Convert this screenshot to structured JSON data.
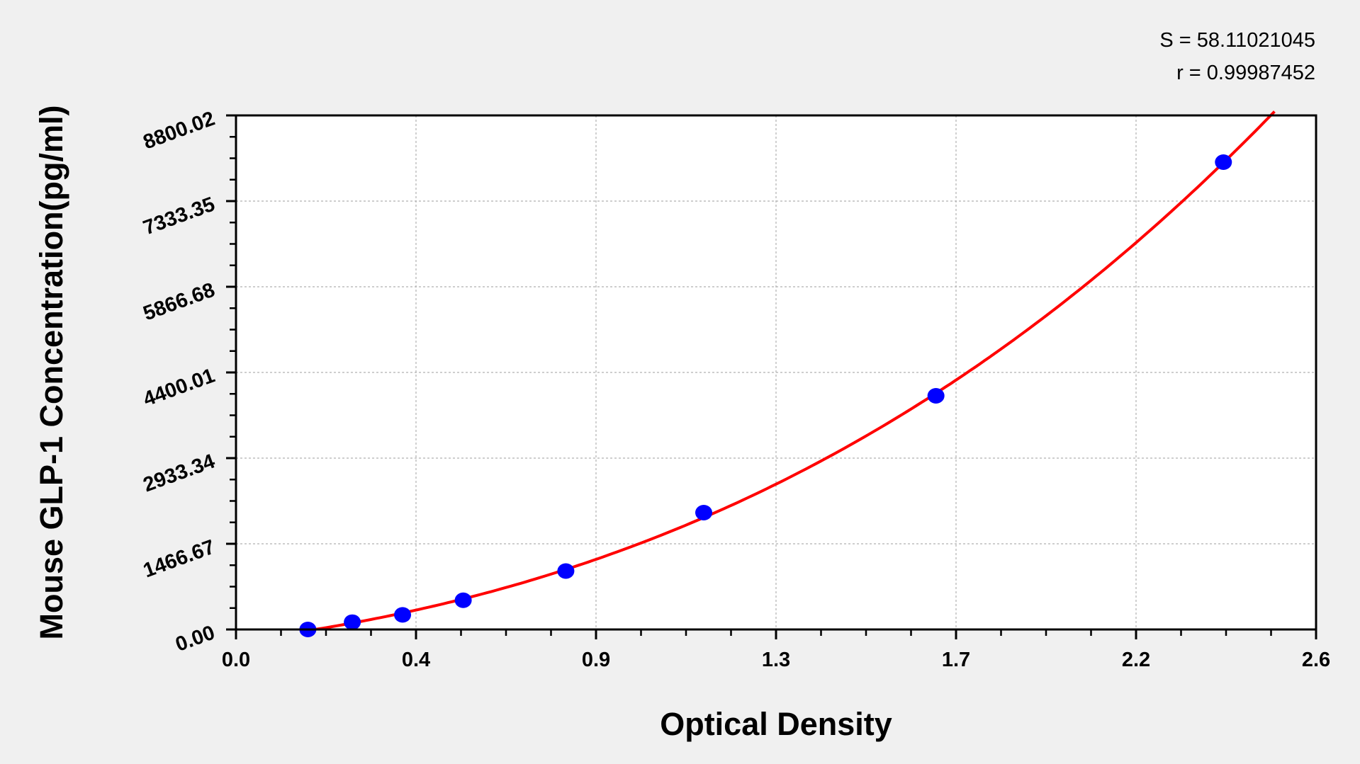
{
  "chart_data": {
    "type": "scatter",
    "title": "",
    "xlabel": "Optical Density",
    "ylabel": "Mouse GLP-1 Concentration(pg/ml)",
    "xlim": [
      0,
      2.6
    ],
    "ylim": [
      0,
      8800.02
    ],
    "x_tick_labels": [
      "0.0",
      "0.4",
      "0.9",
      "1.3",
      "1.7",
      "2.2",
      "2.6"
    ],
    "y_tick_labels": [
      "0.00",
      "1466.67",
      "2933.34",
      "4400.01",
      "5866.68",
      "7333.35",
      "8800.02"
    ],
    "grid": true,
    "points": {
      "x": [
        0.173,
        0.28,
        0.401,
        0.547,
        0.794,
        1.126,
        1.685,
        2.377
      ],
      "y": [
        0,
        125,
        250,
        500,
        1000,
        2000,
        4000,
        8000
      ]
    },
    "fit_curve": {
      "x_range": [
        0.173,
        2.5
      ]
    },
    "annotations": [
      "S = 58.11021045",
      "r = 0.99987452"
    ],
    "colors": {
      "points": "#0000ff",
      "fit": "#ff0000",
      "grid": "#b0b0b0",
      "background": "#f0f0f0",
      "plot_bg": "#ffffff"
    }
  }
}
